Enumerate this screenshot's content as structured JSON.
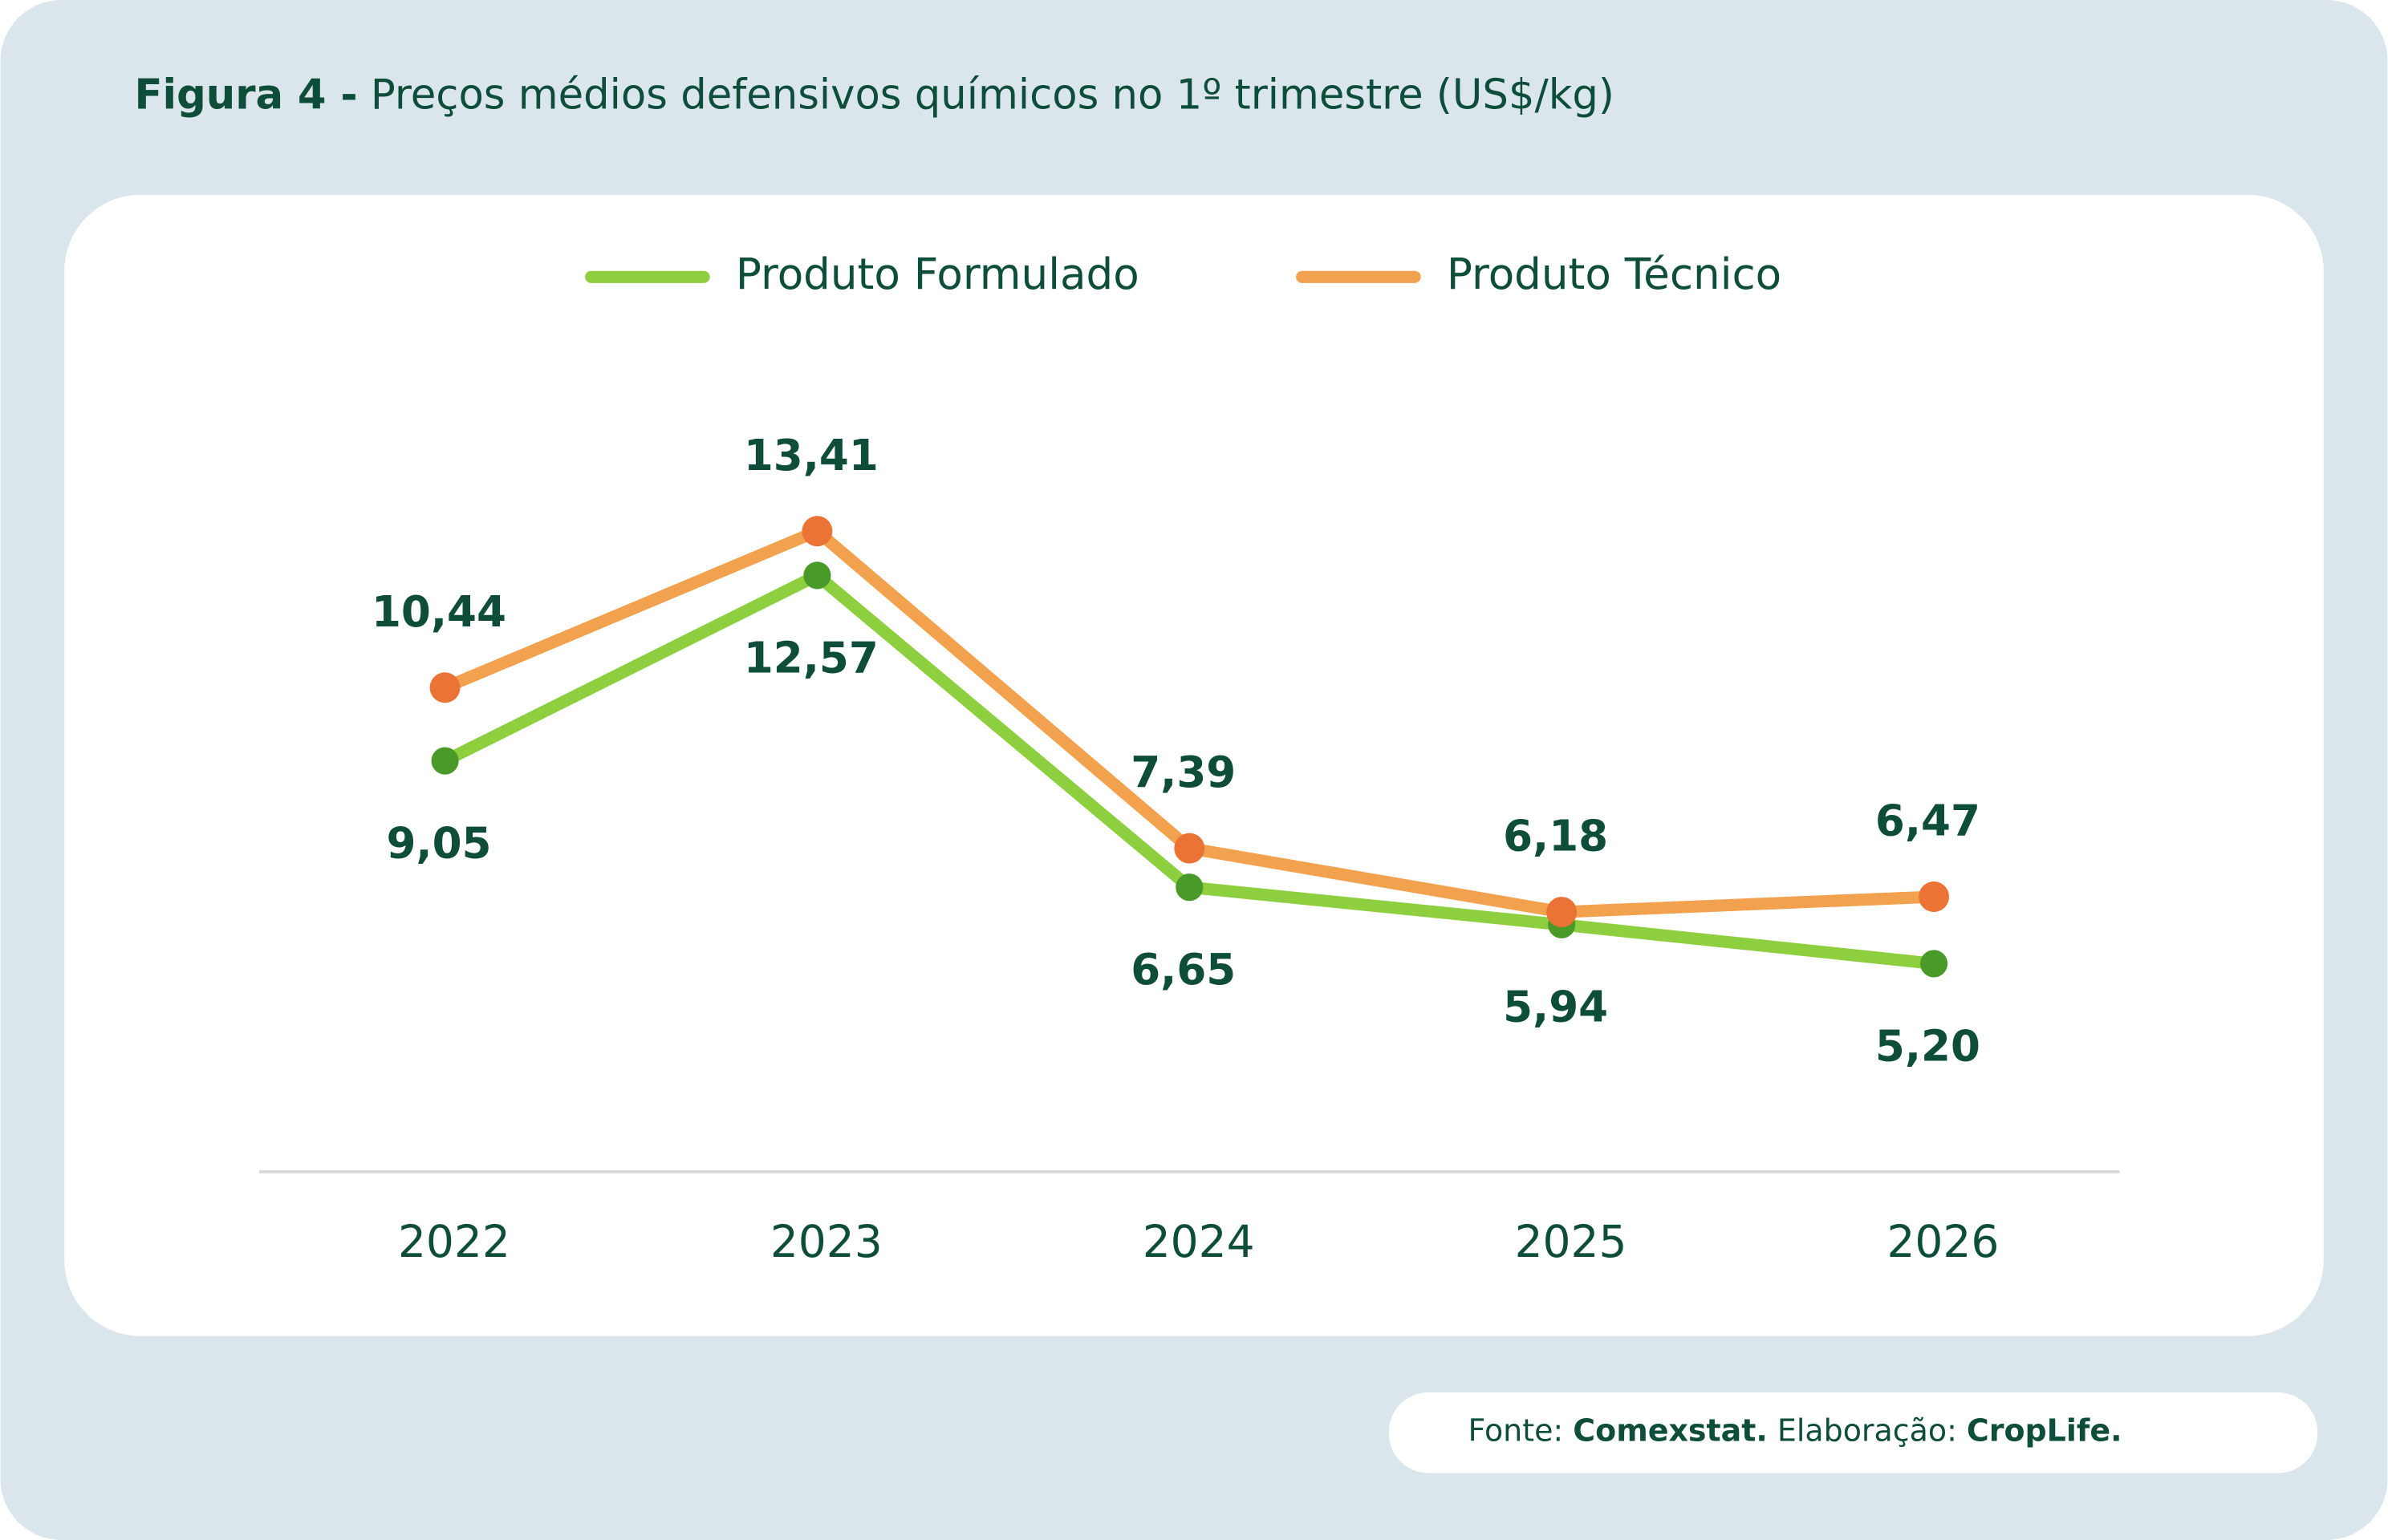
{
  "chart_data": {
    "type": "line",
    "figure_label": "Figura 4 -",
    "title": "Preços médios defensivos químicos no 1º trimestre (US$/kg)",
    "categories": [
      "2022",
      "2023",
      "2024",
      "2025",
      "2026"
    ],
    "series": [
      {
        "name": "Produto Formulado",
        "color": "#8dcf3f",
        "marker_color": "#4a9a2a",
        "values": [
          9.05,
          12.57,
          6.65,
          5.94,
          5.2
        ],
        "value_labels": [
          "9,05",
          "12,57",
          "6,65",
          "5,94",
          "5,20"
        ]
      },
      {
        "name": "Produto Técnico",
        "color": "#f2a24e",
        "marker_color": "#ea7335",
        "values": [
          10.44,
          13.41,
          7.39,
          6.18,
          6.47
        ],
        "value_labels": [
          "10,44",
          "13,41",
          "7,39",
          "6,18",
          "6,47"
        ]
      }
    ],
    "ylim": [
      1.25,
      15
    ],
    "source_label": "Fonte:",
    "source": "Comexstat.",
    "credit_label": "Elaboração:",
    "credit": "CropLife."
  }
}
